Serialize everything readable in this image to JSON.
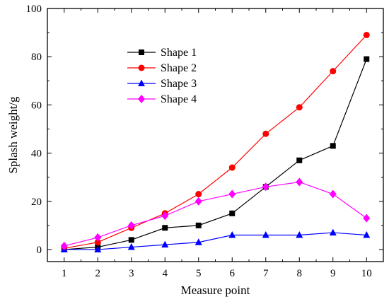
{
  "chart_data": {
    "type": "line",
    "xlabel": "Measure point",
    "ylabel": "Splash weight/g",
    "x": [
      1,
      2,
      3,
      4,
      5,
      6,
      7,
      8,
      9,
      10
    ],
    "xlim": [
      0.5,
      10.5
    ],
    "ylim": [
      -5,
      100
    ],
    "xticks": [
      1,
      2,
      3,
      4,
      5,
      6,
      7,
      8,
      9,
      10
    ],
    "yticks": [
      0,
      20,
      40,
      60,
      80,
      100
    ],
    "grid": false,
    "legend_position": "top-left",
    "series": [
      {
        "name": "Shape 1",
        "color": "#000000",
        "marker": "square",
        "values": [
          0,
          1,
          4,
          9,
          10,
          15,
          26,
          37,
          43,
          79
        ]
      },
      {
        "name": "Shape 2",
        "color": "#ff0000",
        "marker": "circle",
        "values": [
          0.5,
          3,
          9,
          15,
          23,
          34,
          48,
          59,
          74,
          89
        ]
      },
      {
        "name": "Shape 3",
        "color": "#0000ff",
        "marker": "triangle",
        "values": [
          0,
          0,
          1,
          2,
          3,
          6,
          6,
          6,
          7,
          6
        ]
      },
      {
        "name": "Shape 4",
        "color": "#ff00ff",
        "marker": "diamond",
        "values": [
          1.5,
          5,
          10,
          14,
          20,
          23,
          26,
          28,
          23,
          13
        ]
      }
    ]
  }
}
